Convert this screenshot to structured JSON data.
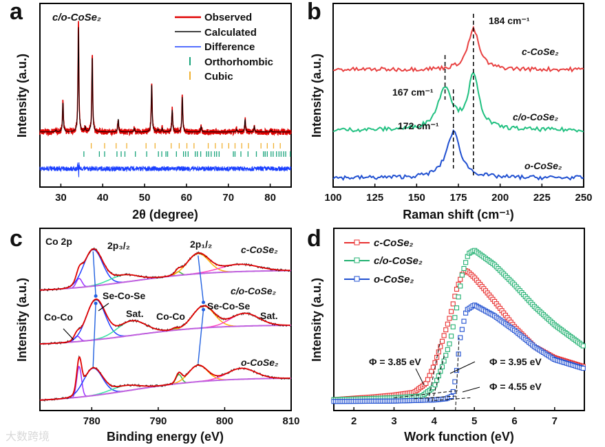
{
  "watermark": "大数跨境",
  "chart_data": [
    {
      "panel": "a",
      "type": "line",
      "sample": "c/o-CoSe₂",
      "xlabel": "2θ (degree)",
      "ylabel": "Intensity (a.u.)",
      "xlim": [
        25,
        85
      ],
      "ylim": [
        0,
        100
      ],
      "xticks": [
        30,
        40,
        50,
        60,
        70,
        80
      ],
      "legend_position": "top-right",
      "legend": [
        {
          "label": "Observed",
          "color": "#e00000"
        },
        {
          "label": "Calculated",
          "color": "#000000"
        },
        {
          "label": "Difference",
          "color": "#1a3fff"
        },
        {
          "label": "Orthorhombic",
          "color": "#16a37a"
        },
        {
          "label": "Cubic",
          "color": "#f0b030"
        }
      ],
      "baseline": 30,
      "difference_baseline": 10,
      "peaks": [
        [
          28.8,
          1
        ],
        [
          30.5,
          16
        ],
        [
          34.2,
          57
        ],
        [
          35.8,
          2.5
        ],
        [
          37.5,
          41
        ],
        [
          43.7,
          7
        ],
        [
          47.5,
          2
        ],
        [
          51.7,
          26
        ],
        [
          53.2,
          1.5
        ],
        [
          54.2,
          2
        ],
        [
          56.6,
          12
        ],
        [
          59.0,
          19
        ],
        [
          63.5,
          3
        ],
        [
          72.0,
          1.5
        ],
        [
          74.0,
          7
        ],
        [
          76.2,
          3
        ],
        [
          80.2,
          1
        ]
      ],
      "cubic_reflections": [
        37.26,
        40.45,
        43.2,
        45.73,
        50.35,
        52.5,
        56.35,
        58.27,
        60.1,
        61.8,
        65.2,
        66.9,
        68.5,
        70.1,
        71.6,
        73.2,
        74.8,
        77.8,
        79.3,
        80.8,
        82.4
      ],
      "orthorhombic_reflections": [
        35.5,
        39.2,
        40.45,
        43.4,
        44.4,
        45.3,
        47.8,
        50.5,
        53.3,
        54.1,
        55.1,
        55.5,
        57.6,
        59.3,
        59.8,
        60.4,
        62.1,
        62.6,
        63.4,
        64.8,
        65.3,
        65.9,
        66.7,
        67.2,
        67.8,
        71.2,
        71.6,
        73.0,
        74.7,
        76.7,
        78.4,
        78.8,
        79.3,
        80.2,
        80.7,
        81.5,
        82.1,
        82.6,
        83.2,
        83.7,
        84.8
      ]
    },
    {
      "panel": "b",
      "type": "line",
      "xlabel": "Raman shift (cm⁻¹)",
      "ylabel": "Intensity (a.u.)",
      "xlim": [
        100,
        250
      ],
      "ylim": [
        0,
        100
      ],
      "xticks": [
        100,
        125,
        150,
        175,
        200,
        225,
        250
      ],
      "series": [
        {
          "name": "c-CoSe₂",
          "color": "#e84040",
          "baseline": 64,
          "peaks": [
            [
              184,
              22,
              4
            ]
          ]
        },
        {
          "name": "c/o-CoSe₂",
          "color": "#20c080",
          "baseline": 31,
          "peaks": [
            [
              167,
              23,
              5
            ],
            [
              184,
              29,
              4
            ]
          ]
        },
        {
          "name": "o-CoSe₂",
          "color": "#1f4fd0",
          "baseline": 5,
          "peaks": [
            [
              172,
              25,
              5
            ]
          ]
        }
      ],
      "annotations": [
        {
          "label": "184 cm⁻¹",
          "x": 184
        },
        {
          "label": "167 cm⁻¹",
          "x": 167
        },
        {
          "label": "172 cm⁻¹",
          "x": 172
        }
      ]
    },
    {
      "panel": "c",
      "type": "line",
      "title": "Co 2p",
      "xlabel": "Binding energy (eV)",
      "ylabel": "Intensity (a.u.)",
      "xlim": [
        772.2,
        810
      ],
      "ylim": [
        0,
        100
      ],
      "xticks": [
        780,
        790,
        800,
        810
      ],
      "labels": {
        "p32": "2p₃/₂",
        "p12": "2p₁/₂",
        "seco1": "Se-Co-Se",
        "seco2": "Se-Co-Se",
        "coco1": "Co-Co",
        "coco2": "Co-Co",
        "sat1": "Sat.",
        "sat2": "Sat."
      },
      "series": [
        {
          "name": "c-CoSe₂",
          "bg": [
            65,
            77
          ],
          "components": [
            {
              "center": 778.1,
              "height": 5,
              "width": 0.6,
              "color": "#9b30ff"
            },
            {
              "center": 780.2,
              "height": 20,
              "width": 2.0,
              "color": "#1f3fff"
            },
            {
              "center": 784.8,
              "height": 4,
              "width": 3,
              "color": "#30e0a0"
            },
            {
              "center": 793.0,
              "height": 2,
              "width": 0.6,
              "color": "#3cb03c"
            },
            {
              "center": 796.0,
              "height": 11,
              "width": 2.3,
              "color": "#ffb000"
            },
            {
              "center": 802.2,
              "height": 4,
              "width": 4,
              "color": "#ff40c0"
            }
          ]
        },
        {
          "name": "c/o-CoSe₂",
          "bg": [
            35.5,
            47
          ],
          "components": [
            {
              "center": 777.8,
              "height": 3,
              "width": 0.6,
              "color": "#9b30ff"
            },
            {
              "center": 780.6,
              "height": 22,
              "width": 2.0,
              "color": "#1f3fff"
            },
            {
              "center": 786.0,
              "height": 8,
              "width": 3,
              "color": "#30e0a0"
            },
            {
              "center": 792.5,
              "height": 1,
              "width": 0.6,
              "color": "#3cb03c"
            },
            {
              "center": 796.8,
              "height": 12,
              "width": 2.3,
              "color": "#ffb000"
            },
            {
              "center": 803.0,
              "height": 7,
              "width": 3,
              "color": "#ff40c0"
            }
          ]
        },
        {
          "name": "o-CoSe₂",
          "bg": [
            4.5,
            18
          ],
          "components": [
            {
              "center": 778.1,
              "height": 17,
              "width": 0.5,
              "color": "#9b30ff"
            },
            {
              "center": 780.2,
              "height": 15,
              "width": 2.0,
              "color": "#1f3fff"
            },
            {
              "center": 785.0,
              "height": 3,
              "width": 3,
              "color": "#30e0a0"
            },
            {
              "center": 793.1,
              "height": 5,
              "width": 0.6,
              "color": "#3cb03c"
            },
            {
              "center": 796.0,
              "height": 9,
              "width": 2.0,
              "color": "#ffb000"
            },
            {
              "center": 802.5,
              "height": 6,
              "width": 3,
              "color": "#ff40c0"
            }
          ]
        }
      ]
    },
    {
      "panel": "d",
      "type": "scatter",
      "xlabel": "Work function (eV)",
      "ylabel": "Intensity (a.u.)",
      "xlim": [
        1.5,
        7.74
      ],
      "ylim": [
        0,
        100
      ],
      "xticks": [
        2,
        3,
        4,
        5,
        6,
        7
      ],
      "legend_position": "top-left",
      "series": [
        {
          "name": "c-CoSe₂",
          "color": "#e83030",
          "work_function": "Φ = 3.85 eV",
          "points": [
            [
              1.5,
              6
            ],
            [
              2.5,
              7.5
            ],
            [
              3,
              8.5
            ],
            [
              3.5,
              10
            ],
            [
              3.8,
              15
            ],
            [
              4.0,
              25
            ],
            [
              4.2,
              38
            ],
            [
              4.4,
              52
            ],
            [
              4.55,
              66
            ],
            [
              4.7,
              75
            ],
            [
              4.8,
              77
            ],
            [
              5,
              73
            ],
            [
              5.5,
              60
            ],
            [
              6,
              46
            ],
            [
              6.5,
              35
            ],
            [
              7,
              29
            ],
            [
              7.74,
              24
            ]
          ]
        },
        {
          "name": "c/o-CoSe₂",
          "color": "#20b070",
          "work_function": "Φ = 3.95 eV",
          "points": [
            [
              1.5,
              6
            ],
            [
              3,
              7
            ],
            [
              3.7,
              8
            ],
            [
              4.0,
              13
            ],
            [
              4.2,
              24
            ],
            [
              4.4,
              38
            ],
            [
              4.55,
              55
            ],
            [
              4.7,
              75
            ],
            [
              4.85,
              86
            ],
            [
              5.0,
              88
            ],
            [
              5.5,
              80
            ],
            [
              6,
              69
            ],
            [
              6.5,
              57
            ],
            [
              7,
              47
            ],
            [
              7.74,
              35
            ]
          ]
        },
        {
          "name": "o-CoSe₂",
          "color": "#1f4fd0",
          "work_function": "Φ = 4.55 eV",
          "points": [
            [
              1.5,
              5
            ],
            [
              3,
              5.2
            ],
            [
              4.0,
              5.8
            ],
            [
              4.3,
              6.5
            ],
            [
              4.45,
              8
            ],
            [
              4.55,
              20
            ],
            [
              4.65,
              40
            ],
            [
              4.8,
              55
            ],
            [
              5.0,
              58
            ],
            [
              5.5,
              52
            ],
            [
              6,
              44
            ],
            [
              6.5,
              35
            ],
            [
              7,
              28
            ],
            [
              7.74,
              23
            ]
          ]
        }
      ]
    }
  ],
  "panel_labels": [
    "a",
    "b",
    "c",
    "d"
  ]
}
